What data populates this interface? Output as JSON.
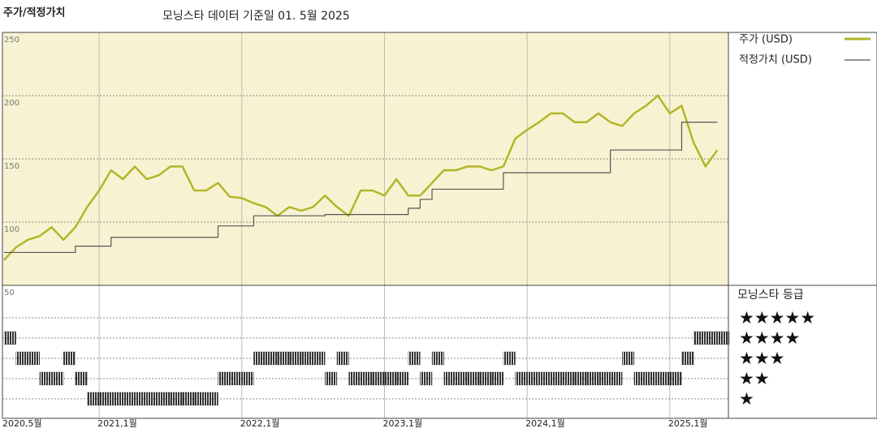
{
  "chart_data": {
    "type": "line",
    "title": "주가/적정가치",
    "subtitle": "모닝스타 데이터 기준일 01. 5월 2025",
    "x": [
      "2020-05",
      "2020-06",
      "2020-07",
      "2020-08",
      "2020-09",
      "2020-10",
      "2020-11",
      "2020-12",
      "2021-01",
      "2021-02",
      "2021-03",
      "2021-04",
      "2021-05",
      "2021-06",
      "2021-07",
      "2021-08",
      "2021-09",
      "2021-10",
      "2021-11",
      "2021-12",
      "2022-01",
      "2022-02",
      "2022-03",
      "2022-04",
      "2022-05",
      "2022-06",
      "2022-07",
      "2022-08",
      "2022-09",
      "2022-10",
      "2022-11",
      "2022-12",
      "2023-01",
      "2023-02",
      "2023-03",
      "2023-04",
      "2023-05",
      "2023-06",
      "2023-07",
      "2023-08",
      "2023-09",
      "2023-10",
      "2023-11",
      "2023-12",
      "2024-01",
      "2024-02",
      "2024-03",
      "2024-04",
      "2024-05",
      "2024-06",
      "2024-07",
      "2024-08",
      "2024-09",
      "2024-10",
      "2024-11",
      "2024-12",
      "2025-01",
      "2025-02",
      "2025-03",
      "2025-04",
      "2025-05"
    ],
    "series": [
      {
        "name": "주가 (USD)",
        "color": "#b3b52a",
        "values": [
          70,
          80,
          86,
          89,
          96,
          86,
          96,
          112,
          125,
          141,
          134,
          144,
          134,
          137,
          144,
          144,
          125,
          125,
          131,
          120,
          119,
          115,
          112,
          105,
          112,
          109,
          112,
          121,
          112,
          105,
          125,
          125,
          121,
          134,
          121,
          121,
          131,
          141,
          141,
          144,
          144,
          141,
          144,
          166,
          173,
          179,
          186,
          186,
          179,
          179,
          186,
          179,
          176,
          186,
          192,
          200,
          186,
          192,
          163,
          144,
          157
        ]
      },
      {
        "name": "적정가치 (USD)",
        "color": "#555555",
        "values": [
          76,
          76,
          76,
          76,
          76,
          76,
          81,
          81,
          81,
          88,
          88,
          88,
          88,
          88,
          88,
          88,
          88,
          88,
          97,
          97,
          97,
          105,
          105,
          105,
          105,
          105,
          105,
          106,
          106,
          106,
          106,
          106,
          106,
          106,
          111,
          118,
          126,
          126,
          126,
          126,
          126,
          126,
          139,
          139,
          139,
          139,
          139,
          139,
          139,
          139,
          139,
          157,
          157,
          157,
          157,
          157,
          157,
          179,
          179,
          179,
          179
        ]
      }
    ],
    "ylim": [
      50,
      250
    ],
    "yticks": [
      50,
      100,
      150,
      200,
      250
    ],
    "xticks": [
      {
        "value": "2020-05",
        "label": "2020,5월"
      },
      {
        "value": "2021-01",
        "label": "2021,1월"
      },
      {
        "value": "2022-01",
        "label": "2022,1월"
      },
      {
        "value": "2023-01",
        "label": "2023,1월"
      },
      {
        "value": "2024-01",
        "label": "2024,1월"
      },
      {
        "value": "2025-01",
        "label": "2025,1월"
      }
    ],
    "grid": true,
    "rating": {
      "title": "모닝스타 등급",
      "levels": [
        {
          "value": 5,
          "label": "★★★★★"
        },
        {
          "value": 4,
          "label": "★★★★"
        },
        {
          "value": 3,
          "label": "★★★"
        },
        {
          "value": 2,
          "label": "★★"
        },
        {
          "value": 1,
          "label": "★"
        }
      ],
      "color": "#333333",
      "values": [
        4,
        3,
        3,
        2,
        2,
        3,
        2,
        1,
        1,
        1,
        1,
        1,
        1,
        1,
        1,
        1,
        1,
        1,
        2,
        2,
        2,
        3,
        3,
        3,
        3,
        3,
        3,
        2,
        3,
        2,
        2,
        2,
        2,
        2,
        3,
        2,
        3,
        2,
        2,
        2,
        2,
        2,
        3,
        2,
        2,
        2,
        2,
        2,
        2,
        2,
        2,
        2,
        3,
        2,
        2,
        2,
        2,
        3,
        4,
        4,
        4
      ]
    }
  }
}
